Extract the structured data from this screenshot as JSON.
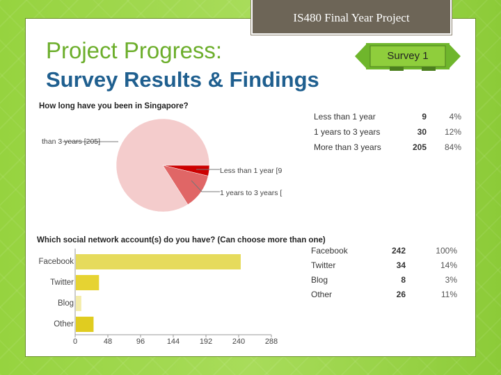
{
  "header": {
    "tab_title": "IS480 Final Year Project"
  },
  "slide": {
    "title_line1": "Project Progress:",
    "title_line2": "Survey Results & Findings",
    "badge": "Survey 1"
  },
  "question1": {
    "text": "How long have you been in Singapore?",
    "pie_labels": [
      "than 3 years [205]",
      "Less than 1 year [9",
      "1 years to 3 years ["
    ],
    "rows": [
      {
        "label": "Less than 1 year",
        "count": "9",
        "pct": "4%"
      },
      {
        "label": "1 years to 3 years",
        "count": "30",
        "pct": "12%"
      },
      {
        "label": "More than 3 years",
        "count": "205",
        "pct": "84%"
      }
    ]
  },
  "question2": {
    "text": "Which social network account(s) do you have? (Can choose more than one)",
    "rows": [
      {
        "label": "Facebook",
        "count": "242",
        "pct": "100%"
      },
      {
        "label": "Twitter",
        "count": "34",
        "pct": "14%"
      },
      {
        "label": "Blog",
        "count": "8",
        "pct": "3%"
      },
      {
        "label": "Other",
        "count": "26",
        "pct": "11%"
      }
    ]
  },
  "chart_data": [
    {
      "type": "pie",
      "title": "How long have you been in Singapore?",
      "categories": [
        "Less than 1 year",
        "1 years to 3 years",
        "More than 3 years"
      ],
      "values": [
        9,
        30,
        205
      ],
      "colors": [
        "#cc0000",
        "#e06666",
        "#f4cccc"
      ]
    },
    {
      "type": "bar",
      "orientation": "horizontal",
      "title": "Which social network account(s) do you have? (Can choose more than one)",
      "categories": [
        "Facebook",
        "Twitter",
        "Blog",
        "Other"
      ],
      "values": [
        242,
        34,
        8,
        26
      ],
      "xlim": [
        0,
        288
      ],
      "xticks": [
        "0",
        "48",
        "96",
        "144",
        "192",
        "240",
        "288"
      ],
      "colors": [
        "#e6db5c",
        "#e6d332",
        "#f3ecaa",
        "#e0cc20"
      ]
    }
  ]
}
